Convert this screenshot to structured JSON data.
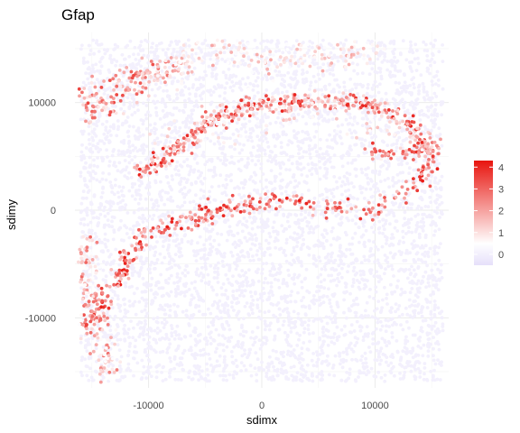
{
  "chart_data": {
    "type": "scatter",
    "title": "Gfap",
    "xlabel": "sdimx",
    "ylabel": "sdimy",
    "xlim": [
      -16500,
      16500
    ],
    "ylim": [
      -16500,
      16500
    ],
    "x_ticks": [
      -10000,
      0,
      10000
    ],
    "y_ticks": [
      -10000,
      0,
      10000
    ],
    "x_tick_labels": [
      "-10000",
      "0",
      "10000"
    ],
    "y_tick_labels": [
      "-10000",
      "0",
      "10000"
    ],
    "grid": true,
    "legend": {
      "placement": "right",
      "type": "colorbar",
      "min": -0.5,
      "max": 4.3,
      "ticks": [
        0,
        1,
        2,
        3,
        4
      ],
      "tick_labels": [
        "0",
        "1",
        "2",
        "3",
        "4"
      ],
      "colors": {
        "low": "#e6e0fa",
        "mid": "#ffffff",
        "high": "#e8150f"
      },
      "midpoint": 0.5
    },
    "background_expression": 0,
    "structures": [
      {
        "name": "lower-boundary-arc",
        "value_range": [
          1.5,
          4.2
        ],
        "density": "high",
        "path": [
          [
            -15800,
            -10500
          ],
          [
            -14500,
            -9600
          ],
          [
            -13000,
            -7200
          ],
          [
            -11800,
            -4200
          ],
          [
            -10500,
            -2200
          ],
          [
            -8000,
            -1400
          ],
          [
            -5000,
            -500
          ],
          [
            -2000,
            500
          ],
          [
            2000,
            800
          ],
          [
            6000,
            400
          ],
          [
            9500,
            -100
          ],
          [
            12500,
            1600
          ],
          [
            14500,
            3600
          ],
          [
            15000,
            5800
          ],
          [
            14000,
            6000
          ],
          [
            11500,
            5000
          ],
          [
            9000,
            5800
          ]
        ]
      },
      {
        "name": "upper-arc",
        "value_range": [
          1.0,
          4.2
        ],
        "density": "high",
        "path": [
          [
            -11000,
            3200
          ],
          [
            -9000,
            4500
          ],
          [
            -6500,
            6500
          ],
          [
            -4500,
            8500
          ],
          [
            -2000,
            9200
          ],
          [
            0,
            9800
          ],
          [
            3000,
            10200
          ],
          [
            7000,
            10000
          ],
          [
            10000,
            9800
          ],
          [
            12500,
            8500
          ],
          [
            14200,
            6800
          ],
          [
            15000,
            5400
          ]
        ]
      },
      {
        "name": "left-cluster",
        "value_range": [
          0.8,
          3.5
        ],
        "density": "medium",
        "path": [
          [
            -15500,
            10500
          ],
          [
            -14500,
            9000
          ],
          [
            -12500,
            11800
          ],
          [
            -10500,
            12300
          ],
          [
            -8500,
            13200
          ],
          [
            -7000,
            14000
          ]
        ]
      },
      {
        "name": "top-ridge",
        "value_range": [
          0.3,
          2.0
        ],
        "density": "medium",
        "path": [
          [
            -8000,
            12500
          ],
          [
            -5000,
            14800
          ],
          [
            -2000,
            14600
          ],
          [
            1000,
            13800
          ],
          [
            4000,
            14500
          ],
          [
            7000,
            14200
          ],
          [
            10500,
            15300
          ]
        ]
      },
      {
        "name": "left-edge-band",
        "value_range": [
          0.4,
          3.0
        ],
        "density": "medium",
        "path": [
          [
            -15900,
            -2000
          ],
          [
            -15500,
            -5000
          ],
          [
            -15000,
            -8000
          ],
          [
            -14500,
            -11000
          ],
          [
            -14000,
            -14000
          ],
          [
            -13500,
            -15500
          ]
        ]
      },
      {
        "name": "center-diffuse",
        "value_range": [
          0.2,
          1.6
        ],
        "density": "low",
        "path": [
          [
            -9000,
            7000
          ],
          [
            -6000,
            6200
          ],
          [
            -3000,
            7500
          ],
          [
            0,
            8800
          ],
          [
            4000,
            9000
          ],
          [
            7000,
            7800
          ],
          [
            10000,
            7200
          ],
          [
            13000,
            6500
          ]
        ]
      }
    ]
  }
}
